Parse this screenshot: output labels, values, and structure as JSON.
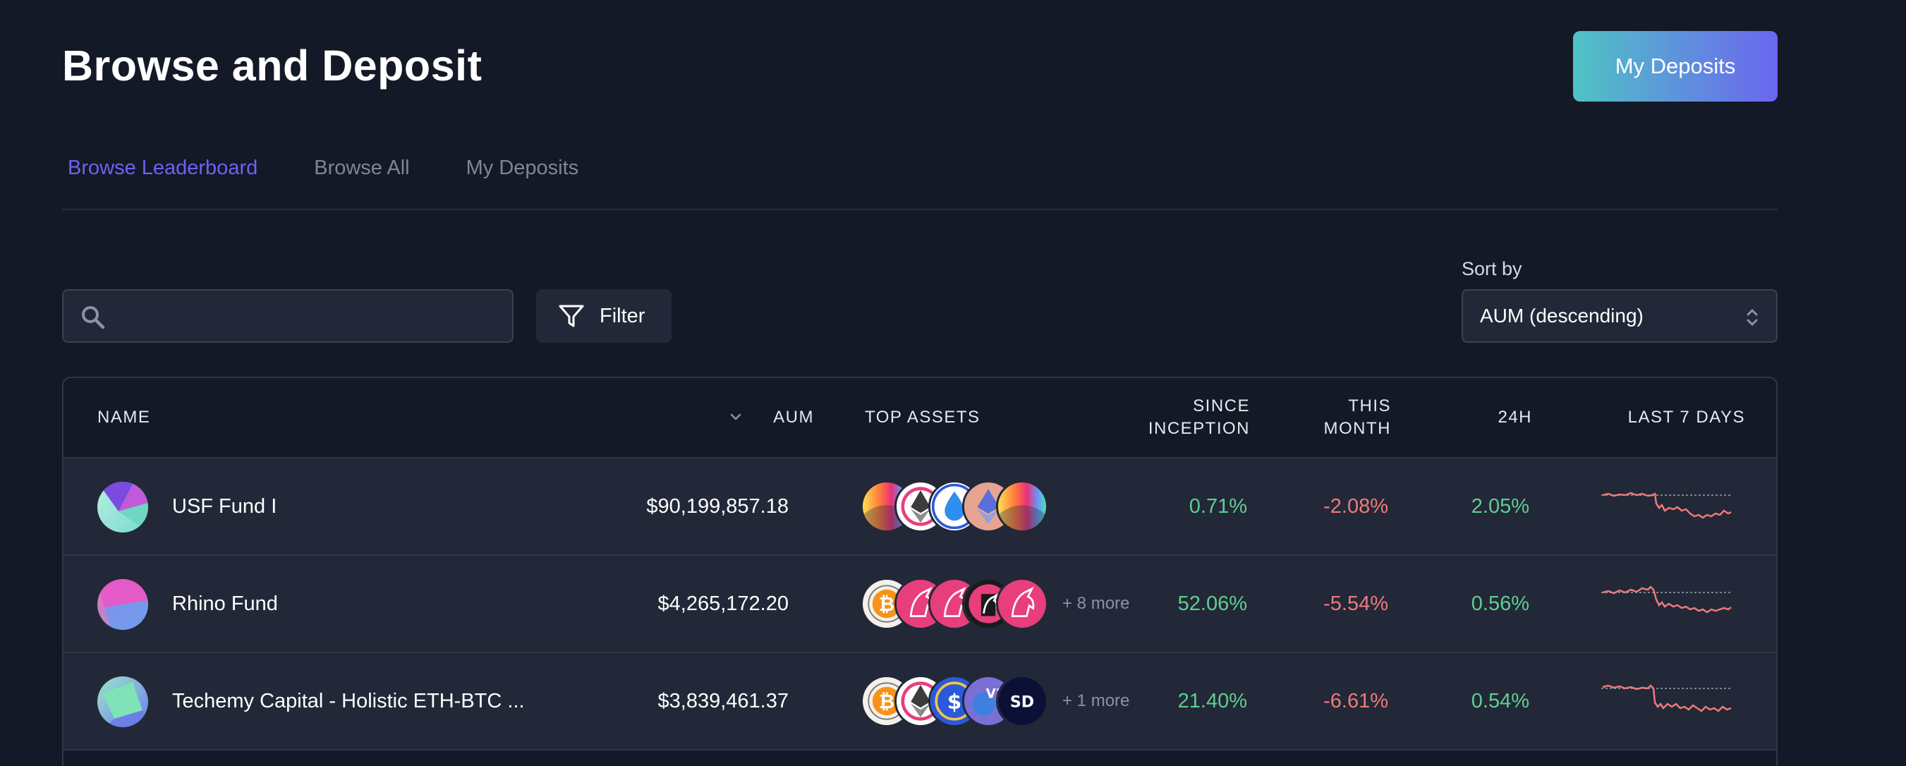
{
  "header": {
    "title": "Browse and Deposit",
    "primary_button": "My Deposits"
  },
  "tabs": [
    {
      "label": "Browse Leaderboard",
      "active": true
    },
    {
      "label": "Browse All",
      "active": false
    },
    {
      "label": "My Deposits",
      "active": false
    }
  ],
  "search": {
    "placeholder": "",
    "value": ""
  },
  "filter": {
    "label": "Filter"
  },
  "sort": {
    "label": "Sort by",
    "value": "AUM (descending)"
  },
  "table": {
    "columns": {
      "name": "NAME",
      "aum": "AUM",
      "top_assets": "TOP ASSETS",
      "since_inception_1": "SINCE",
      "since_inception_2": "INCEPTION",
      "this_month_1": "THIS",
      "this_month_2": "MONTH",
      "h24": "24H",
      "last7": "LAST 7 DAYS"
    },
    "sort_column": "AUM",
    "rows": [
      {
        "name": "USF Fund I",
        "aum": "$90,199,857.18",
        "assets": [
          "rainbow-token-icon",
          "ethereum-icon",
          "water-drop-token-icon",
          "ethereum-icon",
          "rainbow-token-icon"
        ],
        "more": "",
        "since_inception": "0.71%",
        "this_month": "-2.08%",
        "h24": "2.05%"
      },
      {
        "name": "Rhino Fund",
        "aum": "$4,265,172.20",
        "assets": [
          "bitcoin-icon",
          "unicorn-icon",
          "unicorn-icon",
          "unicorn-icon",
          "unicorn-icon"
        ],
        "more": "+ 8 more",
        "since_inception": "52.06%",
        "this_month": "-5.54%",
        "h24": "0.56%"
      },
      {
        "name": "Techemy Capital - Holistic ETH-BTC ...",
        "aum": "$3,839,461.37",
        "assets": [
          "bitcoin-icon",
          "ethereum-icon",
          "dollar-token-icon",
          "v2-token-icon",
          "sd-token-icon"
        ],
        "more": "+ 1 more",
        "since_inception": "21.40%",
        "this_month": "-6.61%",
        "h24": "0.54%"
      }
    ]
  },
  "colors": {
    "background": "#131927",
    "panel": "#222837",
    "accent": "#6c63f0",
    "positive": "#5fcf8f",
    "negative": "#f07a7a",
    "sparkline": "#f07a7a"
  }
}
